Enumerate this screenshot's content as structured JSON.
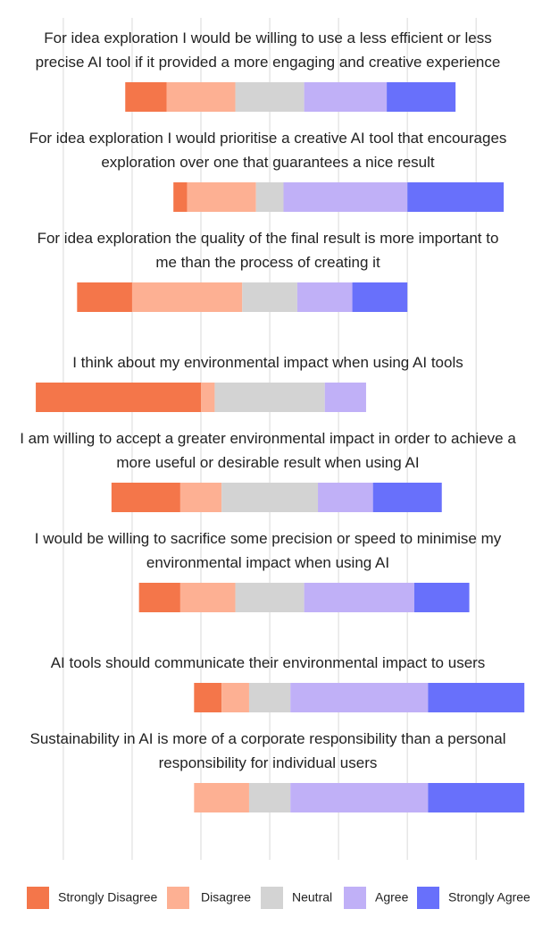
{
  "chart_data": {
    "type": "diverging-bar",
    "categories": [
      [
        "For idea exploration I would be willing to use a less efficient or less",
        "precise AI tool if it provided a more engaging and creative experience"
      ],
      [
        "For idea exploration I would prioritise a creative AI tool that encourages",
        "exploration over one that guarantees a nice result"
      ],
      [
        "For idea exploration the quality of the final result is more important to",
        "me than the process of creating it"
      ],
      [
        "I think about my environmental impact when using AI tools"
      ],
      [
        "I am willing to accept a greater environmental impact in order to achieve a",
        "more useful or desirable result when using AI"
      ],
      [
        "I would be willing to sacrifice some precision or speed to minimise my",
        "environmental impact when using AI"
      ],
      [
        "AI tools should communicate their environmental impact to users"
      ],
      [
        "Sustainability in AI is more of a corporate responsibility than a personal",
        "responsibility for individual users"
      ]
    ],
    "series": [
      {
        "name": "Strongly Disagree",
        "color": "#f4764a",
        "values": [
          3,
          1,
          4,
          12,
          5,
          3,
          2,
          0
        ]
      },
      {
        "name": "Disagree",
        "color": "#fdb093",
        "values": [
          5,
          5,
          8,
          1,
          3,
          4,
          2,
          4
        ]
      },
      {
        "name": "Neutral",
        "color": "#d3d3d3",
        "values": [
          5,
          2,
          4,
          8,
          7,
          5,
          3,
          3
        ]
      },
      {
        "name": "Agree",
        "color": "#c0b0f7",
        "values": [
          6,
          9,
          4,
          3,
          4,
          8,
          10,
          10
        ]
      },
      {
        "name": "Strongly Agree",
        "color": "#6870fb",
        "values": [
          5,
          7,
          4,
          0,
          5,
          4,
          7,
          7
        ]
      }
    ],
    "xlim": [
      -19.6,
      19.2
    ],
    "xticks": [
      -15,
      -10,
      -5,
      0,
      5,
      10,
      15
    ],
    "grid": true
  }
}
